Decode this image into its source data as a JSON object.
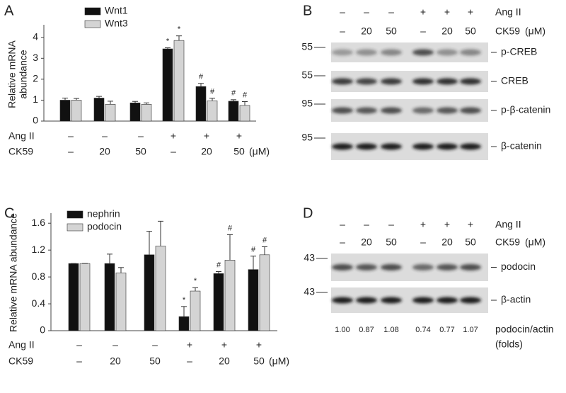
{
  "chart_data": [
    {
      "type": "bar",
      "panel": "A",
      "ylabel": [
        "Relative mRNA",
        "abundance"
      ],
      "ylim": [
        0,
        4.6
      ],
      "yticks": [
        0,
        1,
        2,
        3,
        4
      ],
      "treatments": [
        {
          "label": "Ang II",
          "values": [
            "–",
            "–",
            "–",
            "+",
            "+",
            "+"
          ]
        },
        {
          "label": "CK59",
          "unit": "(μM)",
          "values": [
            "–",
            "20",
            "50",
            "–",
            "20",
            "50"
          ]
        }
      ],
      "series": [
        {
          "name": "Wnt1",
          "color": "#111111",
          "values": [
            1.0,
            1.1,
            0.87,
            3.45,
            1.65,
            0.95
          ],
          "errors": [
            0.1,
            0.08,
            0.07,
            0.05,
            0.15,
            0.07
          ],
          "markers": [
            null,
            null,
            null,
            "*",
            "#",
            "#"
          ]
        },
        {
          "name": "Wnt3",
          "color": "#d4d4d4",
          "values": [
            1.0,
            0.8,
            0.8,
            3.85,
            0.97,
            0.75
          ],
          "errors": [
            0.08,
            0.15,
            0.07,
            0.22,
            0.12,
            0.18
          ],
          "markers": [
            null,
            null,
            null,
            "*",
            "#",
            "#"
          ]
        }
      ]
    },
    {
      "type": "bar",
      "panel": "C",
      "ylabel": [
        "Relative mRNA abundance"
      ],
      "ylim": [
        0,
        1.75
      ],
      "yticks": [
        0,
        0.4,
        0.8,
        1.2,
        1.6
      ],
      "treatments": [
        {
          "label": "Ang II",
          "values": [
            "–",
            "–",
            "–",
            "+",
            "+",
            "+"
          ]
        },
        {
          "label": "CK59",
          "unit": "(μM)",
          "values": [
            "–",
            "20",
            "50",
            "–",
            "20",
            "50"
          ]
        }
      ],
      "series": [
        {
          "name": "nephrin",
          "color": "#111111",
          "values": [
            1.0,
            1.0,
            1.13,
            0.21,
            0.85,
            0.91
          ],
          "errors": [
            0.0,
            0.14,
            0.35,
            0.15,
            0.03,
            0.2
          ],
          "markers": [
            null,
            null,
            null,
            "*",
            "#",
            "#"
          ]
        },
        {
          "name": "podocin",
          "color": "#d4d4d4",
          "values": [
            1.0,
            0.86,
            1.26,
            0.59,
            1.05,
            1.13
          ],
          "errors": [
            0.0,
            0.08,
            0.37,
            0.05,
            0.38,
            0.12
          ],
          "markers": [
            null,
            null,
            null,
            "*",
            "#",
            "#"
          ]
        }
      ]
    }
  ],
  "blots": [
    {
      "panel": "B",
      "treatments": [
        {
          "label": "Ang II",
          "values": [
            "–",
            "–",
            "–",
            "+",
            "+",
            "+"
          ]
        },
        {
          "label": "CK59",
          "unit": "(μM)",
          "values": [
            "–",
            "20",
            "50",
            "–",
            "20",
            "50"
          ]
        }
      ],
      "rows": [
        {
          "marker": "55",
          "label": "p-CREB"
        },
        {
          "marker": "55",
          "label": "CREB"
        },
        {
          "marker": "95",
          "label": "p-β-catenin"
        },
        {
          "marker": "95",
          "label": "β-catenin"
        }
      ]
    },
    {
      "panel": "D",
      "treatments": [
        {
          "label": "Ang II",
          "values": [
            "–",
            "–",
            "–",
            "+",
            "+",
            "+"
          ]
        },
        {
          "label": "CK59",
          "unit": "(μM)",
          "values": [
            "–",
            "20",
            "50",
            "–",
            "20",
            "50"
          ]
        }
      ],
      "rows": [
        {
          "marker": "43",
          "label": "podocin"
        },
        {
          "marker": "43",
          "label": "β-actin"
        }
      ],
      "quantification": {
        "values": [
          "1.00",
          "0.87",
          "1.08",
          "0.74",
          "0.77",
          "1.07"
        ],
        "label": "podocin/actin",
        "unit": "(folds)"
      }
    }
  ]
}
